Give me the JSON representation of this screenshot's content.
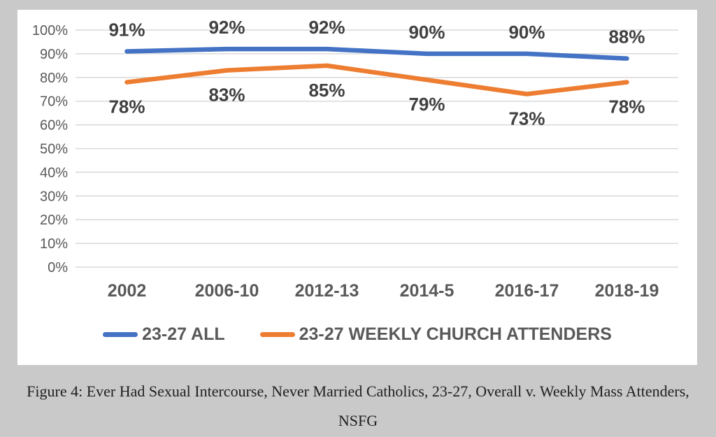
{
  "page": {
    "background_color": "#c9c9c9",
    "panel_color": "#ffffff",
    "caption_line1": "Figure 4: Ever Had Sexual Intercourse, Never Married Catholics, 23-27, Overall v. Weekly Mass Attenders,",
    "caption_line2": "NSFG"
  },
  "chart_data": {
    "type": "line",
    "categories": [
      "2002",
      "2006-10",
      "2012-13",
      "2014-5",
      "2016-17",
      "2018-19"
    ],
    "series": [
      {
        "name": "23-27 ALL",
        "color": "#4472C4",
        "values": [
          91,
          92,
          92,
          90,
          90,
          88
        ],
        "data_labels": [
          "91%",
          "92%",
          "92%",
          "90%",
          "90%",
          "88%"
        ],
        "label_position": "above"
      },
      {
        "name": "23-27 WEEKLY CHURCH ATTENDERS",
        "color": "#ED7D31",
        "values": [
          78,
          83,
          85,
          79,
          73,
          78
        ],
        "data_labels": [
          "78%",
          "83%",
          "85%",
          "79%",
          "73%",
          "78%"
        ],
        "label_position": "below"
      }
    ],
    "y_ticks": [
      "100%",
      "90%",
      "80%",
      "70%",
      "60%",
      "50%",
      "40%",
      "30%",
      "20%",
      "10%",
      "0%"
    ],
    "ylim": [
      0,
      100
    ],
    "y_step": 10,
    "grid": true,
    "legend_position": "bottom",
    "colors": {
      "gridline": "#D9D9D9",
      "axis_tick_label": "#595959",
      "x_axis_label": "#595959",
      "data_label": "#404040"
    }
  }
}
